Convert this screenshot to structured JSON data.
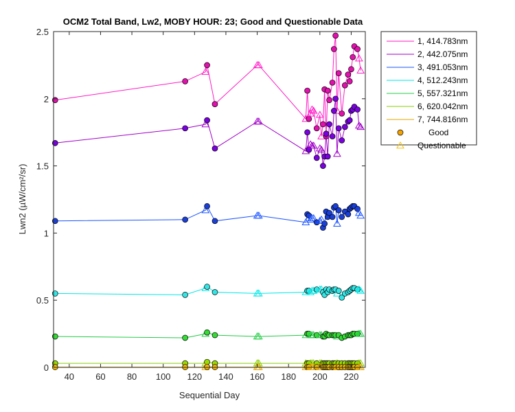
{
  "chart_data": {
    "type": "line",
    "title": "OCM2 Total Band, Lw2, MOBY HOUR: 23;  Good and Questionable Data",
    "xlabel": "Sequential Day",
    "ylabel": "Lwn2 (µW/cm²/sr)",
    "xlim": [
      30,
      229
    ],
    "ylim": [
      0,
      2.5
    ],
    "xticks": [
      40,
      60,
      80,
      100,
      120,
      140,
      160,
      180,
      200,
      220
    ],
    "yticks": [
      0,
      0.5,
      1,
      1.5,
      2,
      2.5
    ],
    "ytick_labels": [
      "0",
      "0.5",
      "1",
      "1.5",
      "2",
      "2.5"
    ],
    "grid": false,
    "legend_position": "outside-top-right",
    "x": [
      31,
      114,
      127,
      128,
      133,
      160,
      161,
      191,
      192,
      193,
      194,
      195,
      196,
      198,
      200,
      201,
      202,
      203,
      204,
      205,
      206,
      208,
      209,
      210,
      211,
      212,
      214,
      216,
      218,
      219,
      220,
      221,
      222,
      224,
      225,
      226
    ],
    "quality": [
      "G",
      "G",
      "Q",
      "G",
      "G",
      "Q",
      "Q",
      "Q",
      "G",
      "G",
      "Q",
      "Q",
      "Q",
      "G",
      "Q",
      "Q",
      "G",
      "G",
      "G",
      "G",
      "G",
      "G",
      "G",
      "G",
      "Q",
      "G",
      "G",
      "G",
      "G",
      "G",
      "G",
      "G",
      "G",
      "G",
      "Q",
      "Q"
    ],
    "series": [
      {
        "name": "1, 414.783nm",
        "color": "#ff1ac6",
        "marker_color": "#e30fae",
        "values": [
          1.99,
          2.13,
          2.2,
          2.25,
          1.96,
          2.25,
          2.25,
          1.85,
          2.06,
          1.85,
          1.89,
          1.92,
          1.91,
          1.78,
          1.88,
          1.72,
          1.81,
          2.07,
          1.72,
          2.06,
          1.99,
          2.12,
          2.37,
          2.47,
          1.91,
          2.19,
          1.89,
          2.1,
          2.18,
          2.13,
          2.22,
          2.31,
          2.39,
          2.37,
          2.3,
          2.21
        ]
      },
      {
        "name": "2, 442.075nm",
        "color": "#a000c8",
        "marker_color": "#7a00e0",
        "values": [
          1.67,
          1.78,
          1.81,
          1.84,
          1.63,
          1.83,
          1.83,
          1.61,
          1.75,
          1.62,
          1.66,
          1.65,
          1.65,
          1.56,
          1.63,
          1.62,
          1.5,
          1.57,
          1.74,
          1.57,
          1.81,
          1.72,
          1.91,
          2.0,
          1.59,
          1.78,
          1.69,
          1.79,
          1.83,
          1.84,
          1.91,
          1.92,
          1.94,
          1.92,
          1.8,
          1.79
        ]
      },
      {
        "name": "3, 491.053nm",
        "color": "#1a53ff",
        "marker_color": "#1a3fd9",
        "values": [
          1.09,
          1.1,
          1.17,
          1.2,
          1.09,
          1.13,
          1.13,
          1.08,
          1.14,
          1.13,
          1.1,
          1.11,
          1.11,
          1.08,
          1.09,
          1.1,
          1.04,
          1.07,
          1.16,
          1.12,
          1.15,
          1.12,
          1.19,
          1.2,
          1.07,
          1.17,
          1.12,
          1.16,
          1.14,
          1.18,
          1.19,
          1.2,
          1.2,
          1.18,
          1.15,
          1.13
        ]
      },
      {
        "name": "4, 512.243nm",
        "color": "#00e6e6",
        "marker_color": "#33e6e6",
        "values": [
          0.55,
          0.54,
          0.59,
          0.6,
          0.56,
          0.55,
          0.55,
          0.56,
          0.57,
          0.57,
          0.56,
          0.57,
          0.57,
          0.58,
          0.58,
          0.58,
          0.56,
          0.54,
          0.58,
          0.56,
          0.58,
          0.57,
          0.58,
          0.58,
          0.55,
          0.57,
          0.52,
          0.55,
          0.56,
          0.57,
          0.58,
          0.59,
          0.59,
          0.58,
          0.58,
          0.57
        ]
      },
      {
        "name": "5, 557.321nm",
        "color": "#22cc44",
        "marker_color": "#33dd33",
        "values": [
          0.23,
          0.22,
          0.25,
          0.26,
          0.24,
          0.23,
          0.23,
          0.24,
          0.25,
          0.25,
          0.24,
          0.24,
          0.24,
          0.24,
          0.24,
          0.24,
          0.23,
          0.23,
          0.25,
          0.24,
          0.24,
          0.24,
          0.24,
          0.24,
          0.23,
          0.24,
          0.22,
          0.23,
          0.24,
          0.24,
          0.24,
          0.25,
          0.25,
          0.25,
          0.25,
          0.25
        ]
      },
      {
        "name": "6, 620.042nm",
        "color": "#88cc00",
        "marker_color": "#99dd00",
        "values": [
          0.03,
          0.03,
          0.03,
          0.04,
          0.03,
          0.03,
          0.03,
          0.03,
          0.03,
          0.03,
          0.03,
          0.03,
          0.03,
          0.03,
          0.03,
          0.03,
          0.03,
          0.03,
          0.03,
          0.03,
          0.03,
          0.03,
          0.03,
          0.03,
          0.03,
          0.03,
          0.03,
          0.03,
          0.03,
          0.03,
          0.03,
          0.03,
          0.03,
          0.03,
          0.03,
          0.03
        ]
      },
      {
        "name": "7, 744.816nm",
        "color": "#e6a800",
        "marker_color": "#f5b800",
        "values": [
          0.002,
          0.002,
          0.002,
          0.003,
          0.002,
          0.002,
          0.002,
          0.002,
          0.002,
          0.002,
          0.002,
          0.002,
          0.002,
          0.002,
          0.002,
          0.002,
          0.002,
          0.002,
          0.002,
          0.002,
          0.002,
          0.002,
          0.002,
          0.002,
          0.002,
          0.002,
          0.002,
          0.002,
          0.002,
          0.002,
          0.002,
          0.002,
          0.002,
          0.002,
          0.002,
          0.002
        ]
      }
    ],
    "marker_legend": [
      {
        "label": "Good",
        "marker": "circle",
        "color": "#f5a300"
      },
      {
        "label": "Questionable",
        "marker": "triangle",
        "color": "#f5c000"
      }
    ]
  }
}
